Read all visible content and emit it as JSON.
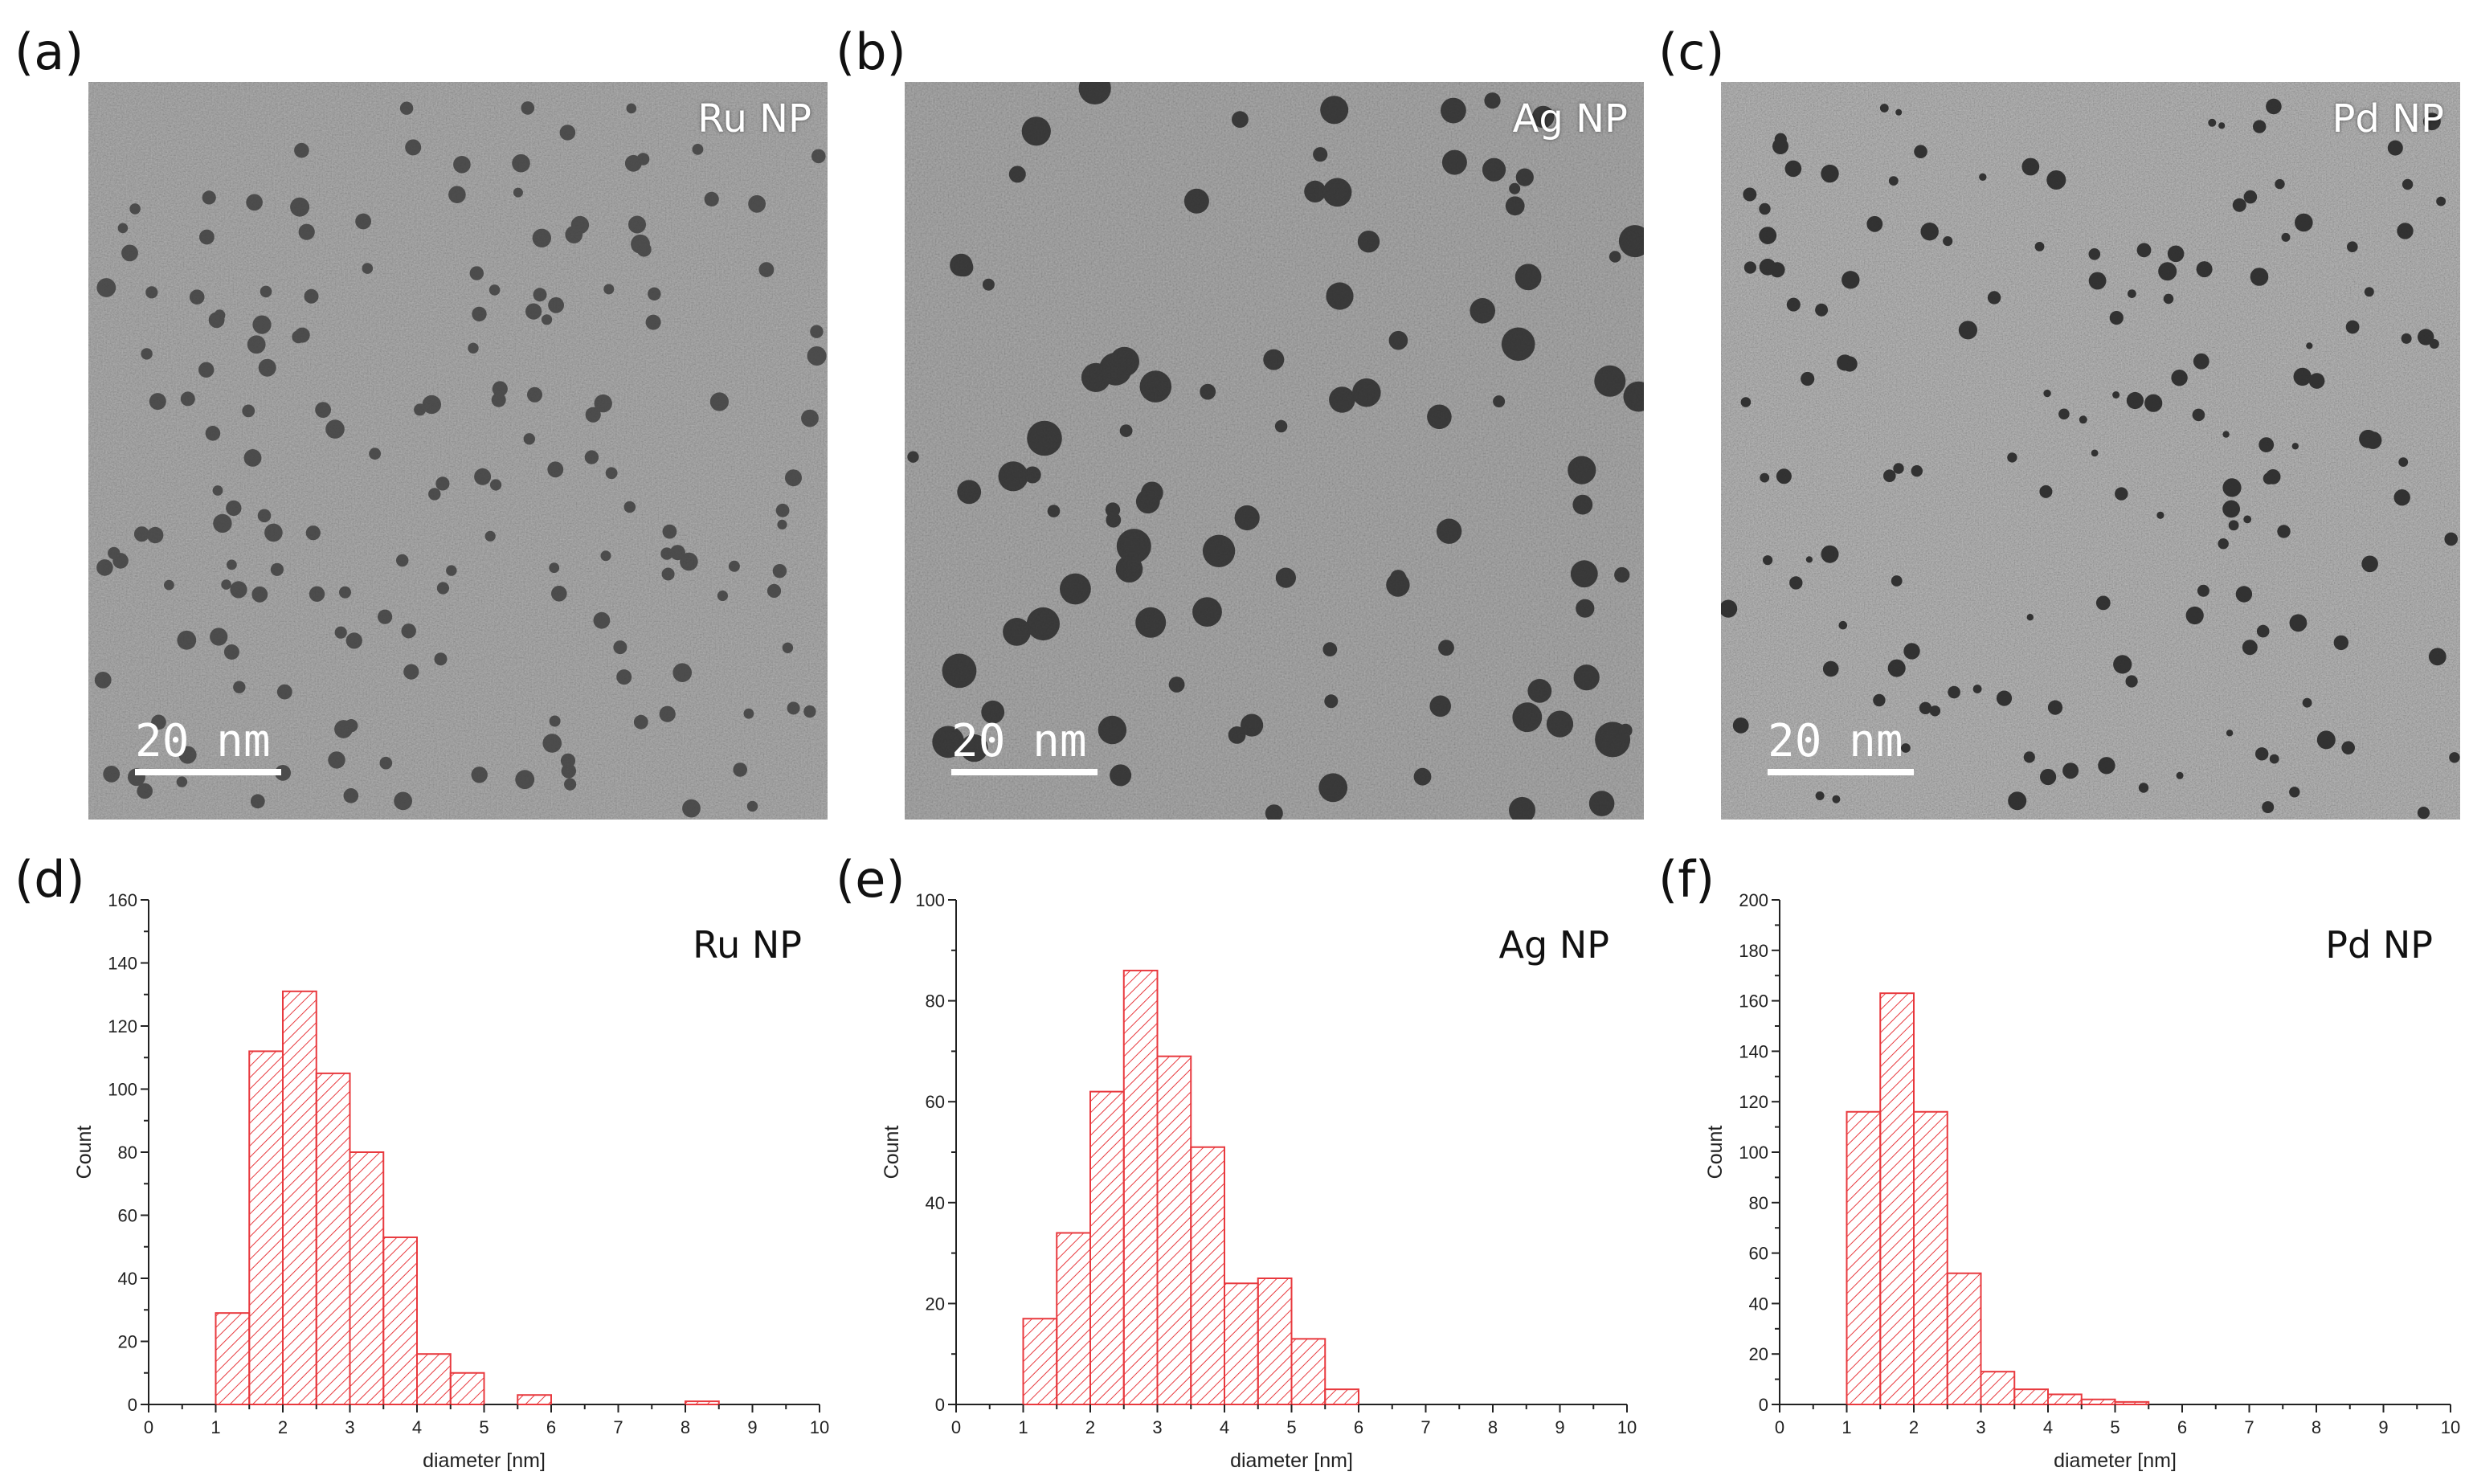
{
  "figure": {
    "tem_panels": [
      {
        "letter": "(a)",
        "label": "Ru NP",
        "scale_text": "20 nm"
      },
      {
        "letter": "(b)",
        "label": "Ag NP",
        "scale_text": "20 nm"
      },
      {
        "letter": "(c)",
        "label": "Pd NP",
        "scale_text": "20 nm"
      }
    ],
    "hist_letters": [
      "(d)",
      "(e)",
      "(f)"
    ]
  },
  "colors": {
    "bar": "#e8393e",
    "axis": "#222222"
  },
  "chart_data": [
    {
      "type": "bar",
      "title": "Ru NP",
      "xlabel": "diameter [nm]",
      "ylabel": "Count",
      "bin_width": 0.5,
      "bin_starts": [
        1.0,
        1.5,
        2.0,
        2.5,
        3.0,
        3.5,
        4.0,
        4.5,
        5.5,
        8.0
      ],
      "values": [
        29,
        112,
        131,
        105,
        80,
        53,
        16,
        10,
        3,
        1
      ],
      "xlim": [
        0,
        10
      ],
      "ylim": [
        0,
        160
      ],
      "xticks": [
        0,
        1,
        2,
        3,
        4,
        5,
        6,
        7,
        8,
        9,
        10
      ],
      "yticks": [
        0,
        20,
        40,
        60,
        80,
        100,
        120,
        140,
        160
      ],
      "grid": false
    },
    {
      "type": "bar",
      "title": "Ag NP",
      "xlabel": "diameter [nm]",
      "ylabel": "Count",
      "bin_width": 0.5,
      "bin_starts": [
        1.0,
        1.5,
        2.0,
        2.5,
        3.0,
        3.5,
        4.0,
        4.5,
        5.0,
        5.5
      ],
      "values": [
        17,
        34,
        62,
        86,
        69,
        51,
        24,
        25,
        13,
        3
      ],
      "xlim": [
        0,
        10
      ],
      "ylim": [
        0,
        100
      ],
      "xticks": [
        0,
        1,
        2,
        3,
        4,
        5,
        6,
        7,
        8,
        9,
        10
      ],
      "yticks": [
        0,
        20,
        40,
        60,
        80,
        100
      ],
      "grid": false
    },
    {
      "type": "bar",
      "title": "Pd NP",
      "xlabel": "diameter [nm]",
      "ylabel": "Count",
      "bin_width": 0.5,
      "bin_starts": [
        1.0,
        1.5,
        2.0,
        2.5,
        3.0,
        3.5,
        4.0,
        4.5,
        5.0
      ],
      "values": [
        116,
        163,
        116,
        52,
        13,
        6,
        4,
        2,
        1
      ],
      "xlim": [
        0,
        10
      ],
      "ylim": [
        0,
        200
      ],
      "xticks": [
        0,
        1,
        2,
        3,
        4,
        5,
        6,
        7,
        8,
        9,
        10
      ],
      "yticks": [
        0,
        20,
        40,
        60,
        80,
        100,
        120,
        140,
        160,
        180,
        200
      ],
      "grid": false
    }
  ]
}
